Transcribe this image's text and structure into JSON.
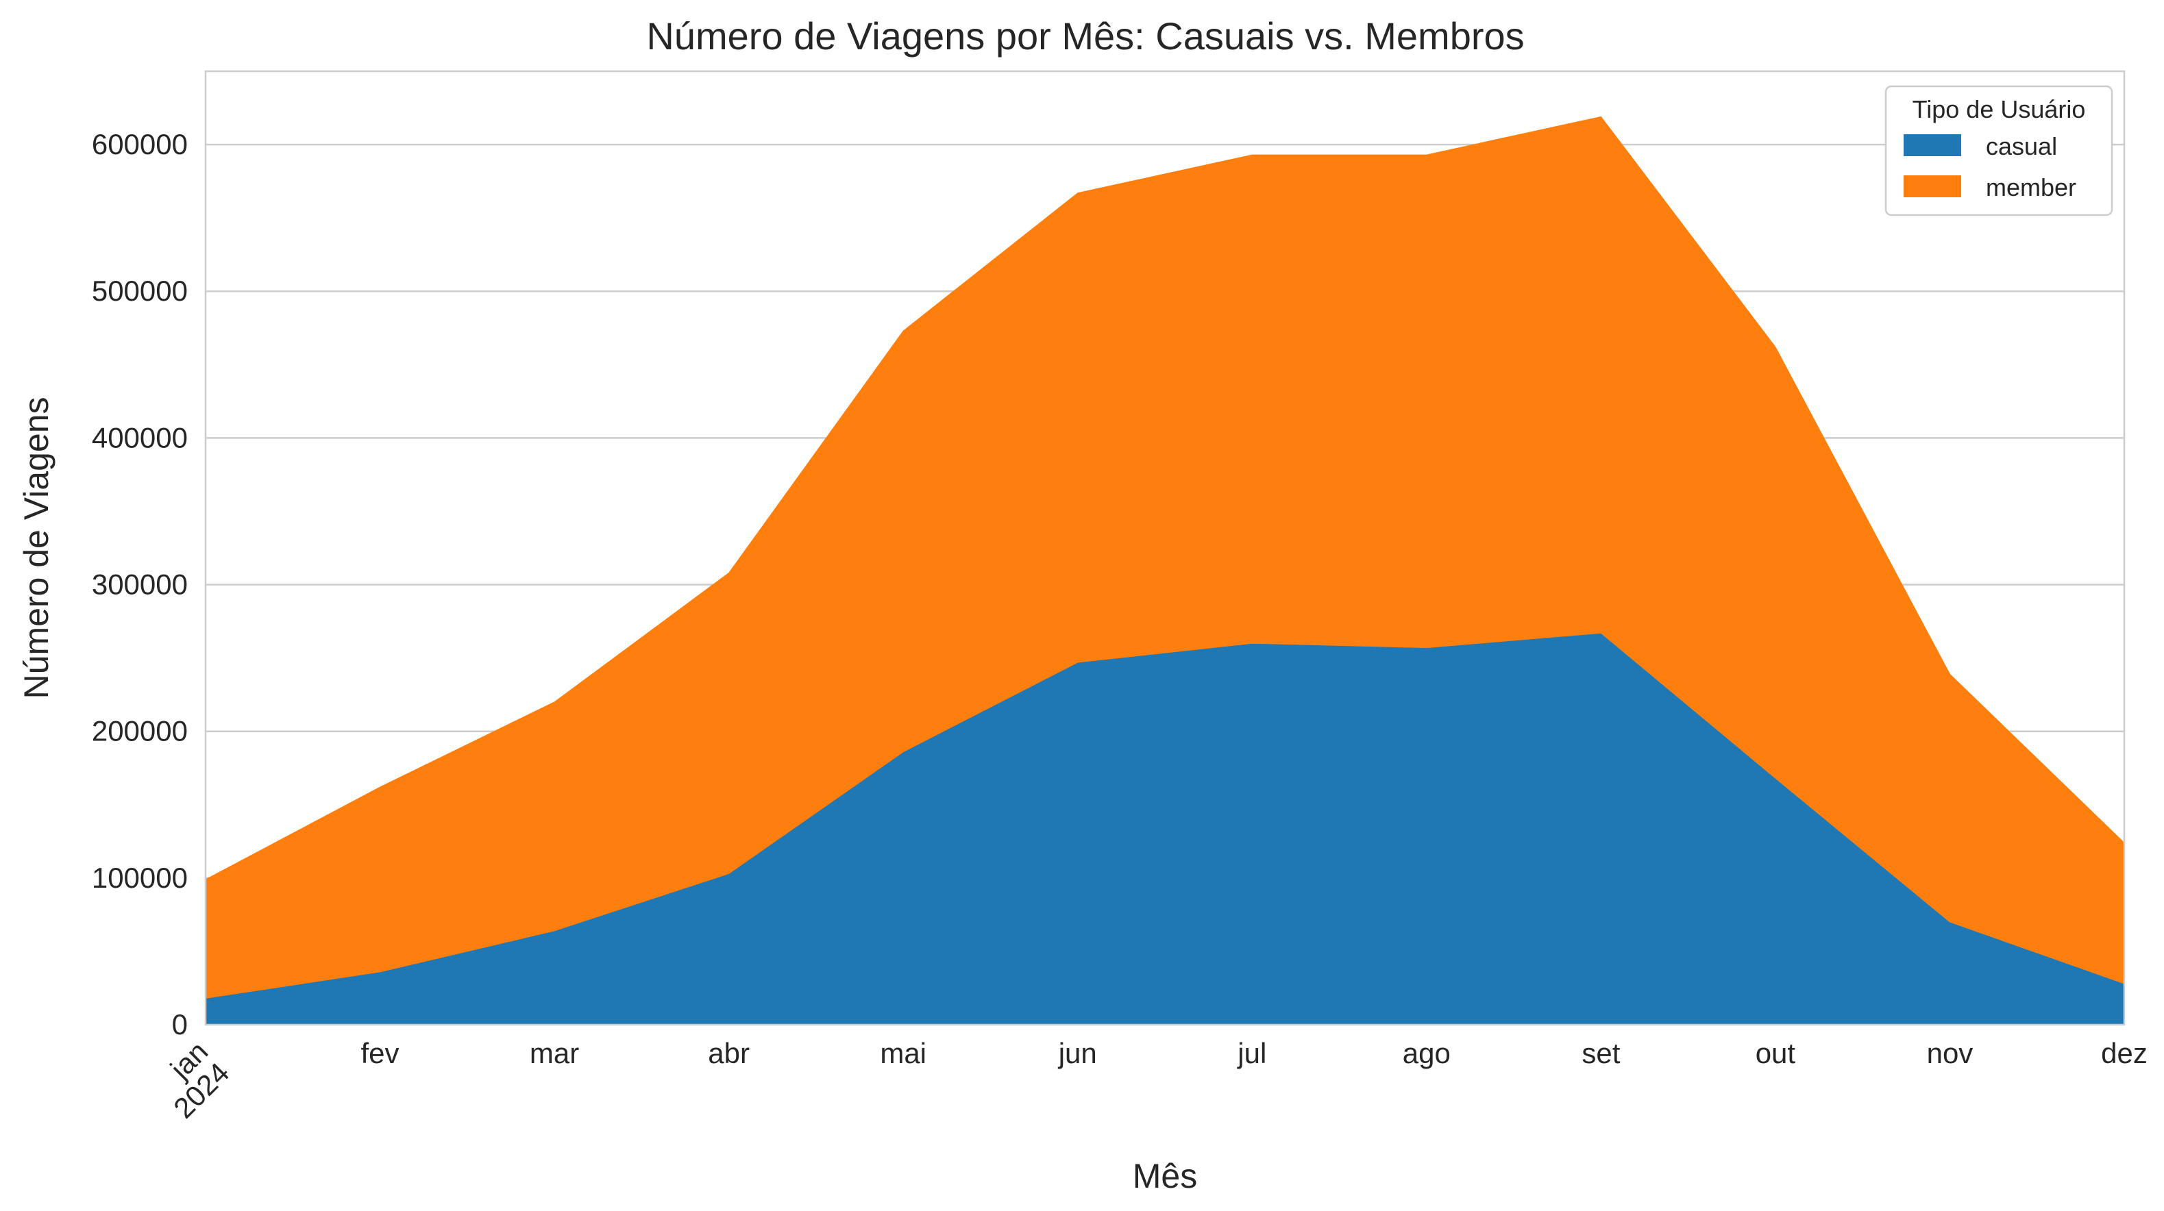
{
  "chart_data": {
    "type": "area",
    "stacked": true,
    "title": "Número de Viagens por Mês: Casuais vs. Membros",
    "xlabel": "Mês",
    "ylabel": "Número de Viagens",
    "categories": [
      "jan",
      "fev",
      "mar",
      "abr",
      "mai",
      "jun",
      "jul",
      "ago",
      "set",
      "out",
      "nov",
      "dez"
    ],
    "year_label": "2024",
    "ylim": [
      0,
      650000
    ],
    "yticks": [
      0,
      100000,
      200000,
      300000,
      400000,
      500000,
      600000
    ],
    "grid": true,
    "legend": {
      "title": "Tipo de Usuário",
      "placement": "top-right"
    },
    "series": [
      {
        "name": "casual",
        "color": "#1f77b4",
        "values": [
          18000,
          36000,
          64000,
          103000,
          186000,
          247000,
          260000,
          257000,
          267000,
          168000,
          70000,
          28000
        ]
      },
      {
        "name": "member",
        "color": "#ff7f0e",
        "values": [
          81000,
          126000,
          156000,
          205000,
          287000,
          320000,
          333000,
          336000,
          352000,
          294000,
          169000,
          96000
        ]
      }
    ]
  }
}
